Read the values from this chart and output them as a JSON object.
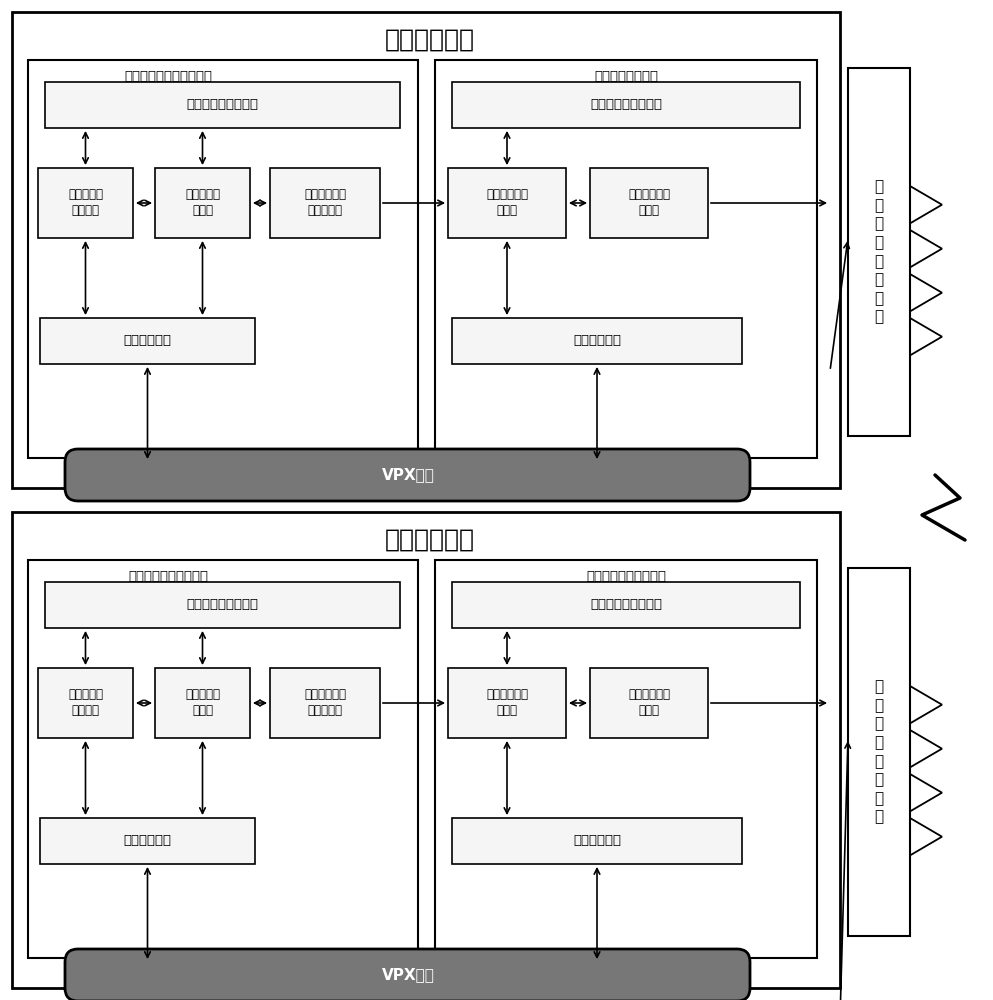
{
  "title_top": "无线综合设备",
  "title_bottom": "综合测试设备",
  "bg_color": "#ffffff",
  "antenna_label_top": "一\n体\n化\n可\n重\n构\n天\n线",
  "antenna_label_bottom": "一\n体\n化\n可\n重\n构\n天\n线",
  "top_module_left_label": "基带信号及信息处理模块",
  "top_module_right_label": "射频信号处理模块",
  "bottom_module_left_label": "通用综合基带测试模块",
  "bottom_module_right_label": "通用综合射频测试模块",
  "vpx_label": "VPX背板",
  "unit_power_clock": "电源及时钟管理单元",
  "unit_task_info": "任务及信息\n管理单元",
  "unit_baseband": "基带信号处\n理单元",
  "unit_digital_wide": "数字化宽带信\n道处理单元",
  "unit_bus": "总线接口单元",
  "unit_channel_switch": "信道选择及开\n关矩阵",
  "unit_channel_filter": "信道滤波及放\n大单元"
}
